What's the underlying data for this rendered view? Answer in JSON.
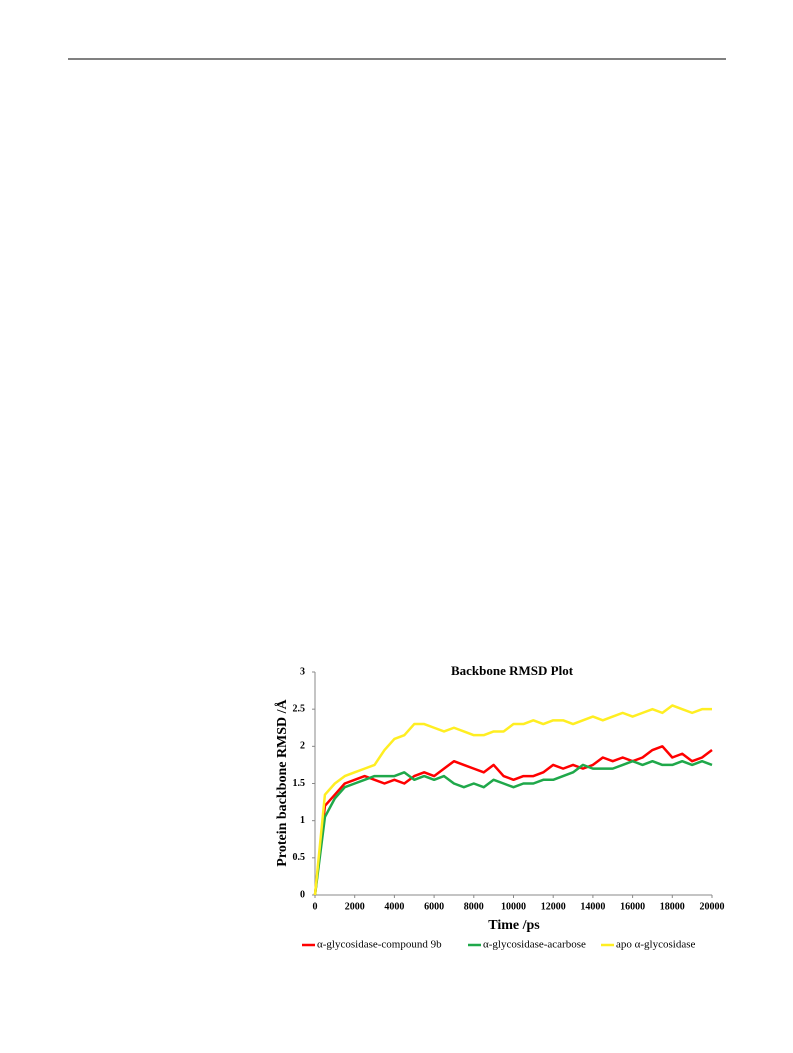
{
  "chart_data": {
    "type": "line",
    "title": "Backbone RMSD Plot",
    "x_label": "Time /ps",
    "y_label": "Protein backbone RMSD /Å",
    "x": [
      0,
      500,
      1000,
      1500,
      2000,
      2500,
      3000,
      3500,
      4000,
      4500,
      5000,
      5500,
      6000,
      6500,
      7000,
      7500,
      8000,
      8500,
      9000,
      9500,
      10000,
      10500,
      11000,
      11500,
      12000,
      12500,
      13000,
      13500,
      14000,
      14500,
      15000,
      15500,
      16000,
      16500,
      17000,
      17500,
      18000,
      18500,
      19000,
      19500,
      20000
    ],
    "xlim": [
      0,
      20000
    ],
    "xticks": [
      0,
      2000,
      4000,
      6000,
      8000,
      10000,
      12000,
      14000,
      16000,
      18000,
      20000
    ],
    "ylim": [
      0,
      3
    ],
    "yticks": [
      0,
      0.5,
      1,
      1.5,
      2,
      2.5,
      3
    ],
    "legend": "bottom",
    "series": [
      {
        "name": "α-glycosidase-compound 9b",
        "color": "#ff0000",
        "values": [
          0,
          1.2,
          1.35,
          1.5,
          1.55,
          1.6,
          1.55,
          1.5,
          1.55,
          1.5,
          1.6,
          1.65,
          1.6,
          1.7,
          1.8,
          1.75,
          1.7,
          1.65,
          1.75,
          1.6,
          1.55,
          1.6,
          1.6,
          1.65,
          1.75,
          1.7,
          1.75,
          1.7,
          1.75,
          1.85,
          1.8,
          1.85,
          1.8,
          1.85,
          1.95,
          2.0,
          1.85,
          1.9,
          1.8,
          1.85,
          1.95
        ]
      },
      {
        "name": "α-glycosidase-acarbose",
        "color": "#1fa84a",
        "values": [
          0,
          1.05,
          1.3,
          1.45,
          1.5,
          1.55,
          1.6,
          1.6,
          1.6,
          1.65,
          1.55,
          1.6,
          1.55,
          1.6,
          1.5,
          1.45,
          1.5,
          1.45,
          1.55,
          1.5,
          1.45,
          1.5,
          1.5,
          1.55,
          1.55,
          1.6,
          1.65,
          1.75,
          1.7,
          1.7,
          1.7,
          1.75,
          1.8,
          1.75,
          1.8,
          1.75,
          1.75,
          1.8,
          1.75,
          1.8,
          1.75
        ]
      },
      {
        "name": "apo α-glycosidase",
        "color": "#ffee22",
        "values": [
          0,
          1.35,
          1.5,
          1.6,
          1.65,
          1.7,
          1.75,
          1.95,
          2.1,
          2.15,
          2.3,
          2.3,
          2.25,
          2.2,
          2.25,
          2.2,
          2.15,
          2.15,
          2.2,
          2.2,
          2.3,
          2.3,
          2.35,
          2.3,
          2.35,
          2.35,
          2.3,
          2.35,
          2.4,
          2.35,
          2.4,
          2.45,
          2.4,
          2.45,
          2.5,
          2.45,
          2.55,
          2.5,
          2.45,
          2.5,
          2.5
        ]
      }
    ]
  }
}
